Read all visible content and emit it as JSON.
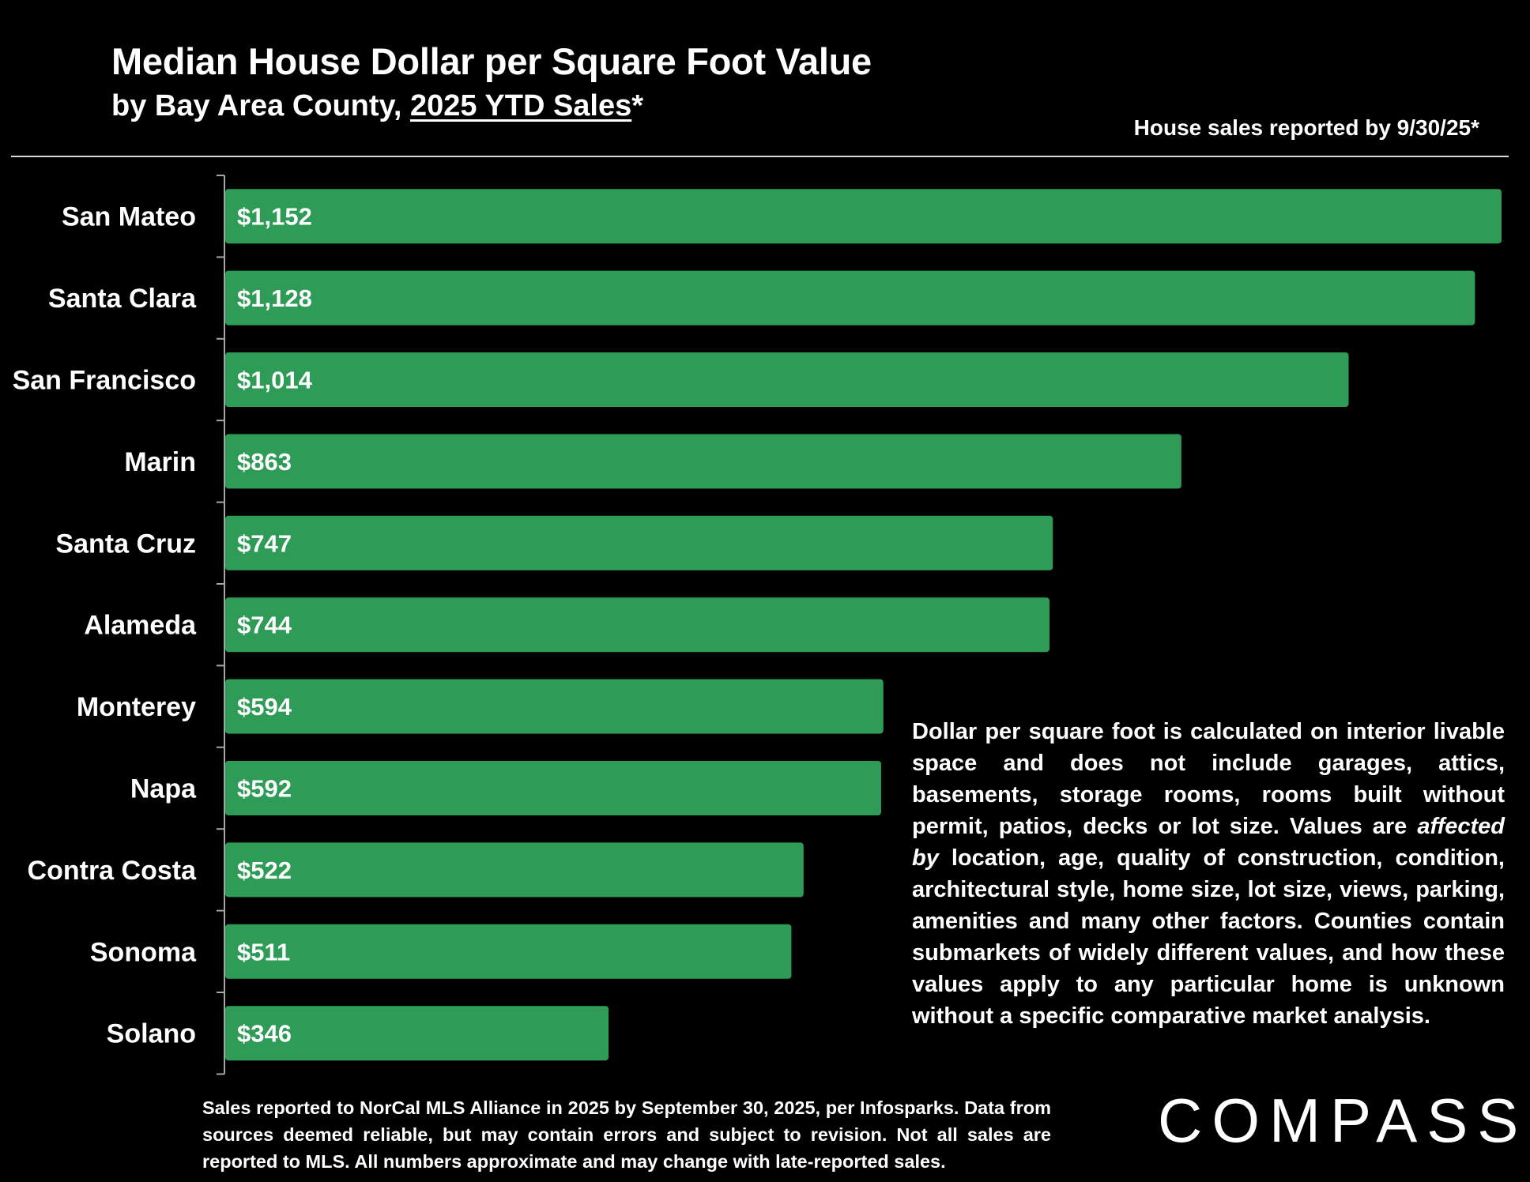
{
  "header": {
    "title": "Median House Dollar per Square Foot Value",
    "subtitle_prefix": "by Bay Area County, ",
    "subtitle_underlined": "2025 YTD Sales",
    "subtitle_suffix": "*",
    "note": "House sales reported by 9/30/25*"
  },
  "chart_data": {
    "type": "bar",
    "orientation": "horizontal",
    "categories": [
      "San Mateo",
      "Santa Clara",
      "San Francisco",
      "Marin",
      "Santa Cruz",
      "Alameda",
      "Monterey",
      "Napa",
      "Contra Costa",
      "Sonoma",
      "Solano"
    ],
    "values": [
      1152,
      1128,
      1014,
      863,
      747,
      744,
      594,
      592,
      522,
      511,
      346
    ],
    "value_labels": [
      "$1,152",
      "$1,128",
      "$1,014",
      "$863",
      "$747",
      "$744",
      "$594",
      "$592",
      "$522",
      "$511",
      "$346"
    ],
    "xlim": [
      0,
      1152
    ],
    "grid": false,
    "colors": {
      "bar": "#2e9b57",
      "axis": "#a6a6a6",
      "background": "#000000"
    }
  },
  "explanation": {
    "part1": "Dollar per square foot is calculated on interior livable space and does not include garages, attics, basements, storage rooms, rooms built without permit, patios, decks or lot size. Values are ",
    "italic": "affected by",
    "part2": " location, age, quality of construction, condition, architectural style, home size, lot size, views, parking, amenities and many other factors. Counties contain submarkets of widely different values, and how these values apply to any particular home is unknown without a specific comparative market analysis."
  },
  "footnote": "Sales reported to NorCal MLS Alliance in 2025 by September 30, 2025, per Infosparks. Data from sources deemed reliable, but may contain errors and subject to revision. Not all sales are reported to MLS. All numbers approximate and may change with late-reported sales.",
  "brand": {
    "logo_text": "COMPASS"
  }
}
